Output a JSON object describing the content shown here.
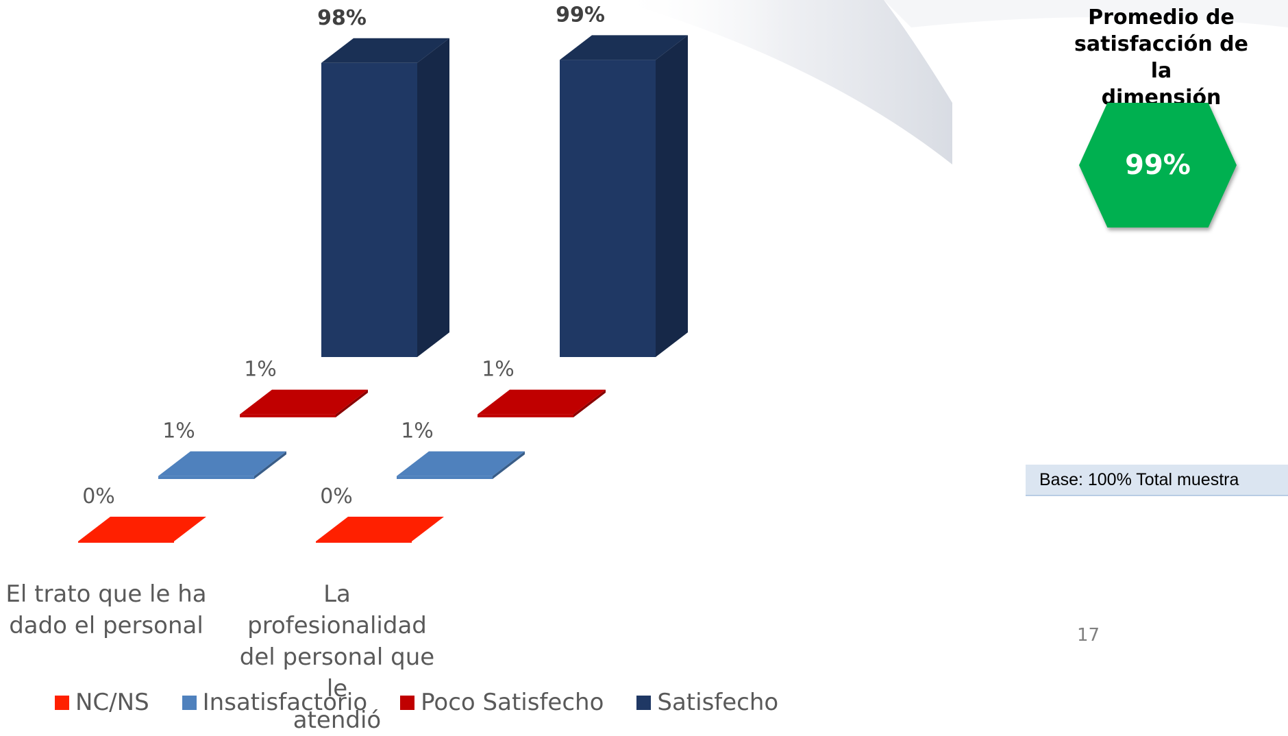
{
  "chart_data": {
    "type": "bar",
    "categories": [
      "El trato que le ha\ndado el personal",
      "La profesionalidad\ndel personal que le\natendió"
    ],
    "series": [
      {
        "name": "NC/NS",
        "values": [
          0,
          0
        ],
        "color": "#ff2000",
        "labels": [
          "0%",
          "0%"
        ]
      },
      {
        "name": "Insatisfactorio",
        "values": [
          1,
          1
        ],
        "color": "#4f81bd",
        "labels": [
          "1%",
          "1%"
        ]
      },
      {
        "name": "Poco Satisfecho",
        "values": [
          1,
          1
        ],
        "color": "#c00000",
        "labels": [
          "1%",
          "1%"
        ]
      },
      {
        "name": "Satisfecho",
        "values": [
          98,
          99
        ],
        "color": "#1f3864",
        "labels": [
          "98%",
          "99%"
        ]
      }
    ],
    "unit": "%",
    "ylim": [
      0,
      100
    ],
    "grid": false,
    "legend_position": "bottom"
  },
  "summary": {
    "title": "Promedio de\nsatisfacción de la\ndimensión",
    "value": "99%",
    "color": "#00b050"
  },
  "base_note": "Base: 100% Total muestra",
  "page_number": "17"
}
